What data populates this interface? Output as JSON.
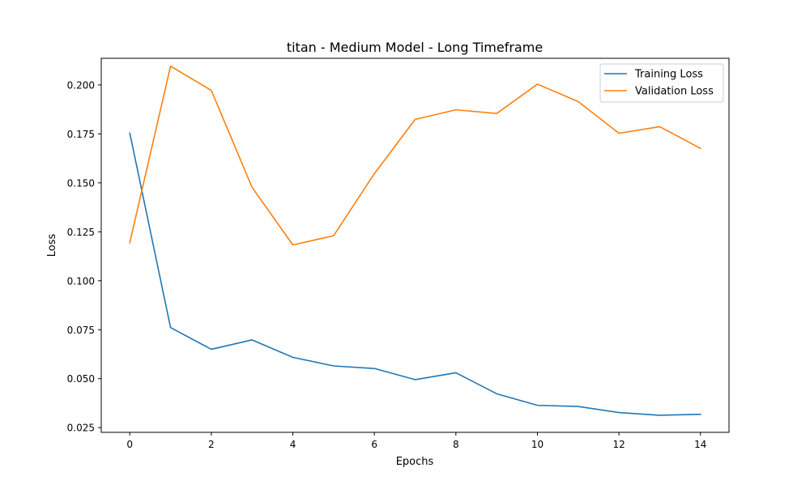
{
  "chart_data": {
    "type": "line",
    "title": "titan - Medium Model - Long Timeframe",
    "xlabel": "Epochs",
    "ylabel": "Loss",
    "xlim": [
      -0.7,
      14.7
    ],
    "ylim": [
      0.0226,
      0.2136
    ],
    "x_ticks": [
      0,
      2,
      4,
      6,
      8,
      10,
      12,
      14
    ],
    "x_tick_labels": [
      "0",
      "2",
      "4",
      "6",
      "8",
      "10",
      "12",
      "14"
    ],
    "y_ticks": [
      0.025,
      0.05,
      0.075,
      0.1,
      0.125,
      0.15,
      0.175,
      0.2
    ],
    "y_tick_labels": [
      "0.025",
      "0.050",
      "0.075",
      "0.100",
      "0.125",
      "0.150",
      "0.175",
      "0.200"
    ],
    "grid": false,
    "legend_position": "top-right",
    "x": [
      0,
      1,
      2,
      3,
      4,
      5,
      6,
      7,
      8,
      9,
      10,
      11,
      12,
      13,
      14
    ],
    "series": [
      {
        "name": "Training Loss",
        "color": "#1f77b4",
        "values": [
          0.1754,
          0.0761,
          0.065,
          0.0698,
          0.0609,
          0.0565,
          0.0552,
          0.0495,
          0.053,
          0.0423,
          0.0364,
          0.0358,
          0.0327,
          0.0313,
          0.0318
        ]
      },
      {
        "name": "Validation Loss",
        "color": "#ff7f0e",
        "values": [
          0.1194,
          0.2096,
          0.1972,
          0.1477,
          0.1183,
          0.123,
          0.1547,
          0.1824,
          0.1873,
          0.1854,
          0.2004,
          0.1915,
          0.1753,
          0.1787,
          0.1676
        ]
      }
    ]
  }
}
